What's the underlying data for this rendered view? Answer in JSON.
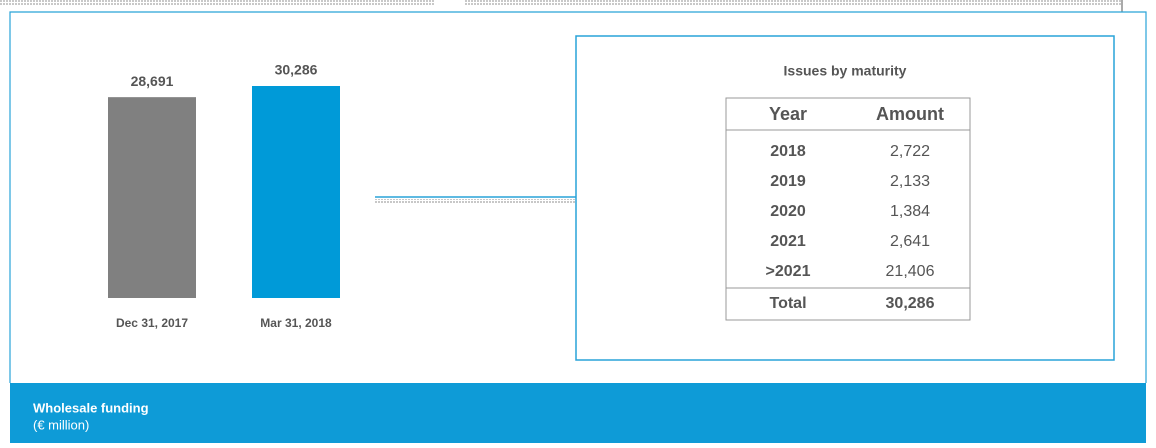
{
  "chart_data": {
    "type": "bar",
    "categories": [
      "Dec 31, 2017",
      "Mar 31, 2018"
    ],
    "values": [
      28691,
      30286
    ],
    "value_labels": [
      "28,691",
      "30,286"
    ],
    "colors": [
      "#808080",
      "#009ad8"
    ]
  },
  "table": {
    "title": "Issues by maturity",
    "header": [
      "Year",
      "Amount"
    ],
    "rows": [
      [
        "2018",
        "2,722"
      ],
      [
        "2019",
        "2,133"
      ],
      [
        "2020",
        "1,384"
      ],
      [
        "2021",
        "2,641"
      ],
      [
        ">2021",
        "21,406"
      ]
    ],
    "total": [
      "Total",
      "30,286"
    ]
  },
  "footer": {
    "title": "Wholesale funding",
    "subtitle": "(€ million)"
  }
}
